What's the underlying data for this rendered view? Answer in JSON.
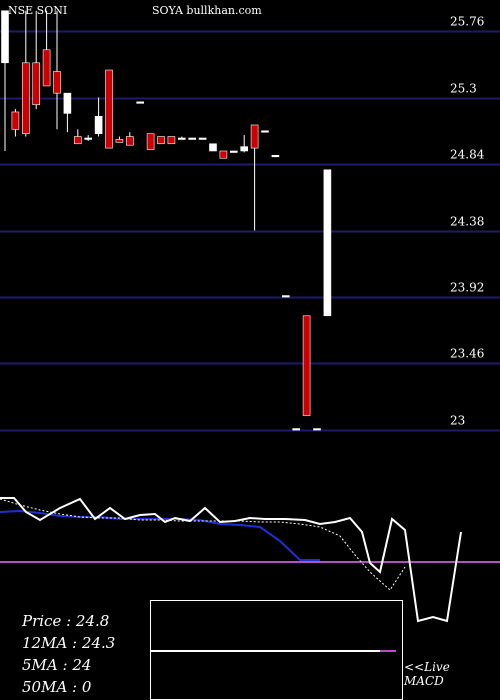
{
  "header": {
    "exchange_symbol": "NSE SONI",
    "site": "SOYA bullkhan.com"
  },
  "stats": {
    "price": "Price   : 24.8",
    "ma12": "12MA : 24.3",
    "ma5": "5MA : 24",
    "ma50": "50MA : 0"
  },
  "macd_label": {
    "line1": "<<Live",
    "line2": "MACD"
  },
  "colors": {
    "background": "#000000",
    "grid": "#1c1c6e",
    "up_candle": "#ffffff",
    "down_candle": "#cc0000",
    "indicator_line": "#ffffff",
    "ma_line": "#1f2fd6",
    "baseline": "#b44fc0"
  },
  "chart_data": {
    "type": "candlestick",
    "y_ticks": [
      25.76,
      25.3,
      24.84,
      24.38,
      23.92,
      23.46,
      23
    ],
    "y_tick_labels": [
      "25.76",
      "25.3",
      "24.84",
      "24.38",
      "23.92",
      "23.46",
      "23"
    ],
    "ylim": [
      22.9,
      25.9
    ],
    "grid": true,
    "candles": [
      {
        "o": 25.54,
        "h": 25.9,
        "l": 24.93,
        "c": 25.9
      },
      {
        "o": 25.2,
        "h": 25.22,
        "l": 25.03,
        "c": 25.08
      },
      {
        "o": 25.54,
        "h": 25.9,
        "l": 25.03,
        "c": 25.05
      },
      {
        "o": 25.54,
        "h": 25.9,
        "l": 25.22,
        "c": 25.25
      },
      {
        "o": 25.63,
        "h": 25.9,
        "l": 25.38,
        "c": 25.38
      },
      {
        "o": 25.48,
        "h": 25.9,
        "l": 25.08,
        "c": 25.33
      },
      {
        "o": 25.19,
        "h": 25.33,
        "l": 25.06,
        "c": 25.33
      },
      {
        "o": 25.03,
        "h": 25.08,
        "l": 24.98,
        "c": 24.98
      },
      {
        "o": 25.02,
        "h": 25.04,
        "l": 25.0,
        "c": 25.02
      },
      {
        "o": 25.05,
        "h": 25.3,
        "l": 25.03,
        "c": 25.17
      },
      {
        "o": 25.49,
        "h": 25.49,
        "l": 24.95,
        "c": 24.95
      },
      {
        "o": 25.01,
        "h": 25.03,
        "l": 24.99,
        "c": 24.99
      },
      {
        "o": 25.03,
        "h": 25.06,
        "l": 24.97,
        "c": 24.97
      },
      {
        "o": 25.27,
        "h": 25.27,
        "l": 25.27,
        "c": 25.27
      },
      {
        "o": 25.05,
        "h": 25.05,
        "l": 24.94,
        "c": 24.94
      },
      {
        "o": 25.03,
        "h": 25.03,
        "l": 24.98,
        "c": 24.98
      },
      {
        "o": 25.03,
        "h": 25.03,
        "l": 24.98,
        "c": 24.98
      },
      {
        "o": 25.02,
        "h": 25.03,
        "l": 25.01,
        "c": 25.02
      },
      {
        "o": 25.02,
        "h": 25.02,
        "l": 25.02,
        "c": 25.02
      },
      {
        "o": 25.02,
        "h": 25.02,
        "l": 25.02,
        "c": 25.02
      },
      {
        "o": 24.93,
        "h": 24.98,
        "l": 24.93,
        "c": 24.98
      },
      {
        "o": 24.93,
        "h": 24.93,
        "l": 24.88,
        "c": 24.88
      },
      {
        "o": 24.93,
        "h": 24.93,
        "l": 24.93,
        "c": 24.93
      },
      {
        "o": 24.93,
        "h": 25.04,
        "l": 24.92,
        "c": 24.96
      },
      {
        "o": 25.11,
        "h": 25.11,
        "l": 24.38,
        "c": 24.95
      },
      {
        "o": 25.07,
        "h": 25.07,
        "l": 25.07,
        "c": 25.07
      },
      {
        "o": 24.9,
        "h": 24.9,
        "l": 24.9,
        "c": 24.9
      },
      {
        "o": 23.93,
        "h": 23.93,
        "l": 23.93,
        "c": 23.93
      },
      {
        "o": 23.01,
        "h": 23.01,
        "l": 23.01,
        "c": 23.01
      },
      {
        "o": 23.79,
        "h": 23.79,
        "l": 23.1,
        "c": 23.1
      },
      {
        "o": 23.01,
        "h": 23.01,
        "l": 23.01,
        "c": 23.01
      },
      {
        "o": 23.79,
        "h": 24.8,
        "l": 23.79,
        "c": 24.8
      }
    ]
  }
}
